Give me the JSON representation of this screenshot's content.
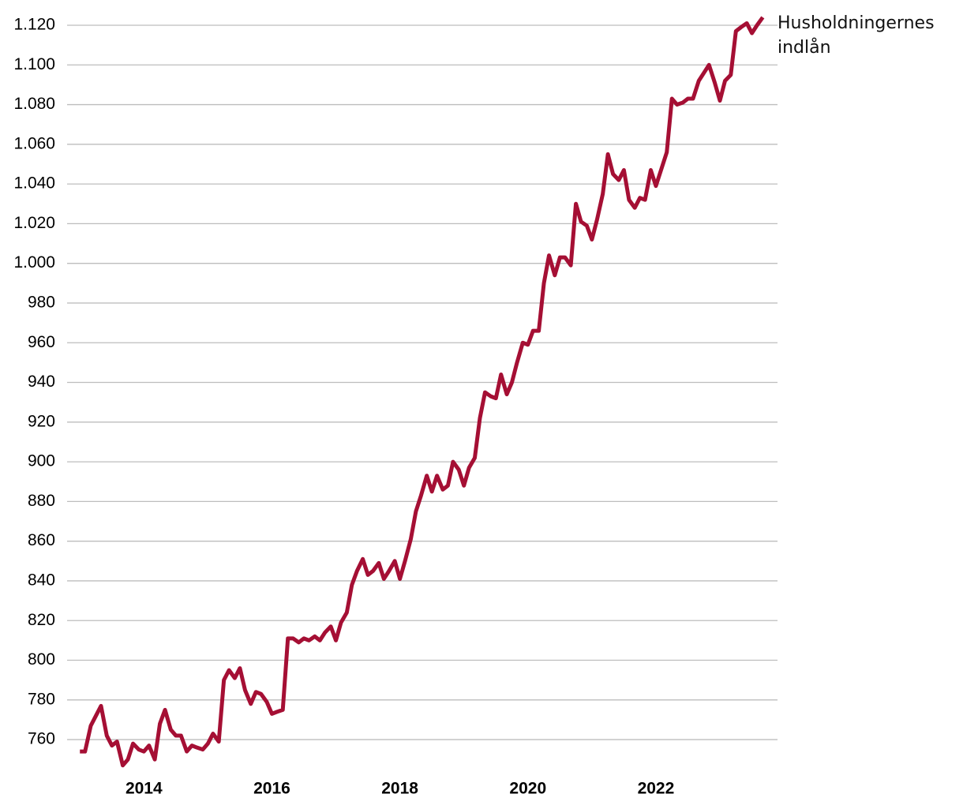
{
  "chart_data": {
    "type": "line",
    "x": [
      2013.0,
      2013.08,
      2013.17,
      2013.25,
      2013.33,
      2013.42,
      2013.5,
      2013.58,
      2013.67,
      2013.75,
      2013.83,
      2013.92,
      2014.0,
      2014.08,
      2014.17,
      2014.25,
      2014.33,
      2014.42,
      2014.5,
      2014.58,
      2014.67,
      2014.75,
      2014.83,
      2014.92,
      2015.0,
      2015.08,
      2015.17,
      2015.25,
      2015.33,
      2015.42,
      2015.5,
      2015.58,
      2015.67,
      2015.75,
      2015.83,
      2015.92,
      2016.0,
      2016.08,
      2016.17,
      2016.25,
      2016.33,
      2016.42,
      2016.5,
      2016.58,
      2016.67,
      2016.75,
      2016.83,
      2016.92,
      2017.0,
      2017.08,
      2017.17,
      2017.25,
      2017.33,
      2017.42,
      2017.5,
      2017.58,
      2017.67,
      2017.75,
      2017.83,
      2017.92,
      2018.0,
      2018.08,
      2018.17,
      2018.25,
      2018.33,
      2018.42,
      2018.5,
      2018.58,
      2018.67,
      2018.75,
      2018.83,
      2018.92,
      2019.0,
      2019.08,
      2019.17,
      2019.25,
      2019.33,
      2019.42,
      2019.5,
      2019.58,
      2019.67,
      2019.75,
      2019.83,
      2019.92,
      2020.0,
      2020.08,
      2020.17,
      2020.25,
      2020.33,
      2020.42,
      2020.5,
      2020.58,
      2020.67,
      2020.75,
      2020.83,
      2020.92,
      2021.0,
      2021.08,
      2021.17,
      2021.25,
      2021.33,
      2021.42,
      2021.5,
      2021.58,
      2021.67,
      2021.75,
      2021.83,
      2021.92,
      2022.0,
      2022.08,
      2022.17,
      2022.25,
      2022.33,
      2022.42,
      2022.5,
      2022.58,
      2022.67,
      2022.75,
      2022.83,
      2022.92,
      2023.0,
      2023.08,
      2023.17,
      2023.25,
      2023.33,
      2023.42,
      2023.5,
      2023.58,
      2023.67
    ],
    "series": [
      {
        "name": "Husholdningernes indlån",
        "color": "#a50f34",
        "values": [
          754,
          754,
          767,
          772,
          777,
          762,
          757,
          759,
          747,
          750,
          758,
          755,
          754,
          757,
          750,
          768,
          775,
          765,
          762,
          762,
          754,
          757,
          756,
          755,
          758,
          763,
          759,
          790,
          795,
          791,
          796,
          785,
          778,
          784,
          783,
          779,
          773,
          774,
          775,
          811,
          811,
          809,
          811,
          810,
          812,
          810,
          814,
          817,
          810,
          819,
          824,
          838,
          845,
          851,
          843,
          845,
          849,
          841,
          845,
          850,
          841,
          850,
          861,
          875,
          883,
          893,
          885,
          893,
          886,
          888,
          900,
          896,
          888,
          897,
          902,
          922,
          935,
          933,
          932,
          944,
          934,
          940,
          950,
          960,
          959,
          966,
          966,
          990,
          1004,
          994,
          1003,
          1003,
          999,
          1030,
          1021,
          1019,
          1012,
          1022,
          1035,
          1055,
          1045,
          1042,
          1047,
          1032,
          1028,
          1033,
          1032,
          1047,
          1039,
          1047,
          1056,
          1083,
          1080,
          1081,
          1083,
          1083,
          1092,
          1096,
          1100,
          1091,
          1082,
          1092,
          1095,
          1117,
          1119,
          1121,
          1116,
          1120,
          1124
        ]
      }
    ],
    "xlim": [
      2012.8,
      2023.9
    ],
    "xticks": [
      2014,
      2016,
      2018,
      2020,
      2022
    ],
    "ylim": [
      745,
      1125
    ],
    "yticks": [
      760,
      780,
      800,
      820,
      840,
      860,
      880,
      900,
      920,
      940,
      960,
      980,
      {
        "value": 1000,
        "label": "1.000"
      },
      {
        "value": 1020,
        "label": "1.020"
      },
      {
        "value": 1040,
        "label": "1.040"
      },
      {
        "value": 1060,
        "label": "1.060"
      },
      {
        "value": 1080,
        "label": "1.080"
      },
      {
        "value": 1100,
        "label": "1.100"
      },
      {
        "value": 1120,
        "label": "1.120"
      }
    ],
    "grid": true
  }
}
